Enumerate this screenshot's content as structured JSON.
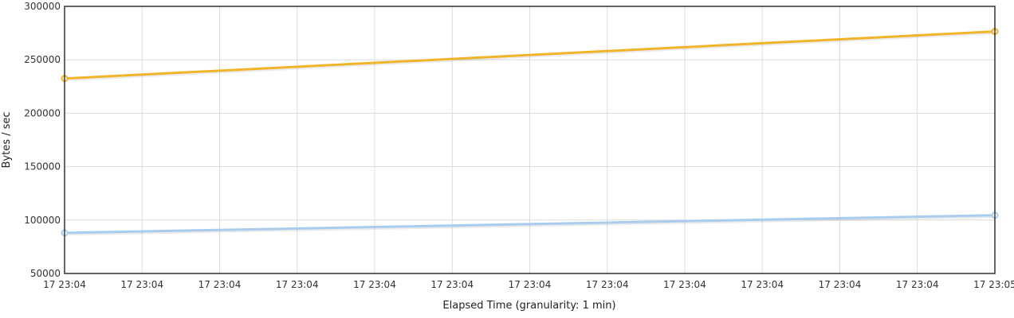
{
  "chart_data": {
    "type": "line",
    "title": "",
    "xlabel": "Elapsed Time (granularity: 1 min)",
    "ylabel": "Bytes / sec",
    "ylim": [
      50000,
      300000
    ],
    "y_ticks": [
      50000,
      100000,
      150000,
      200000,
      250000,
      300000
    ],
    "x_tick_labels": [
      "17 23:04",
      "17 23:04",
      "17 23:04",
      "17 23:04",
      "17 23:04",
      "17 23:04",
      "17 23:04",
      "17 23:04",
      "17 23:04",
      "17 23:04",
      "17 23:04",
      "17 23:04",
      "17 23:05"
    ],
    "grid": true,
    "legend": "none",
    "series": [
      {
        "color": "#f0b429",
        "x": [
          0,
          12
        ],
        "values": [
          232500,
          276500
        ]
      },
      {
        "color": "#a9cdef",
        "x": [
          0,
          12
        ],
        "values": [
          88000,
          104500
        ]
      }
    ]
  }
}
